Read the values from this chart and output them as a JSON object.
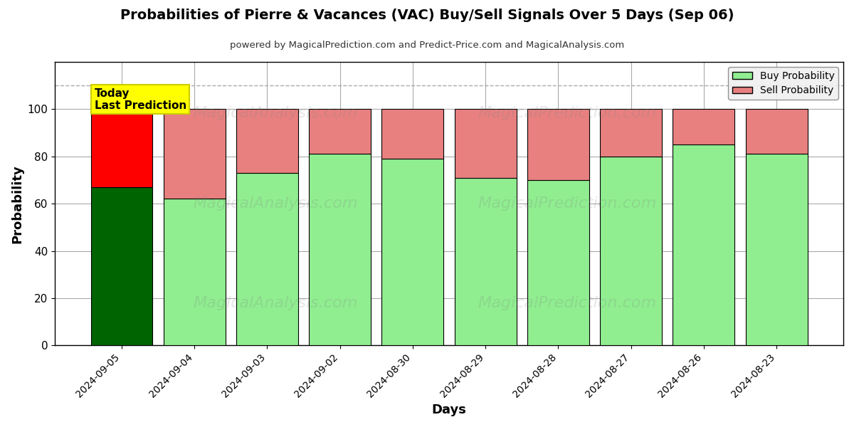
{
  "title": "Probabilities of Pierre & Vacances (VAC) Buy/Sell Signals Over 5 Days (Sep 06)",
  "subtitle": "powered by MagicalPrediction.com and Predict-Price.com and MagicalAnalysis.com",
  "xlabel": "Days",
  "ylabel": "Probability",
  "dates": [
    "2024-09-05",
    "2024-09-04",
    "2024-09-03",
    "2024-09-02",
    "2024-08-30",
    "2024-08-29",
    "2024-08-28",
    "2024-08-27",
    "2024-08-26",
    "2024-08-23"
  ],
  "buy_probs": [
    67,
    62,
    73,
    81,
    79,
    71,
    70,
    80,
    85,
    81
  ],
  "sell_probs": [
    33,
    38,
    27,
    19,
    21,
    29,
    30,
    20,
    15,
    19
  ],
  "buy_color_normal": "#90EE90",
  "sell_color_normal": "#E88080",
  "buy_color_today": "#006400",
  "sell_color_today": "#FF0000",
  "bar_edge_color": "#000000",
  "today_annotation_text": "Today\nLast Prediction",
  "today_annotation_bg": "#FFFF00",
  "today_annotation_edge": "#CCCC00",
  "legend_buy": "Buy Probability",
  "legend_sell": "Sell Probability",
  "ylim": [
    0,
    120
  ],
  "yticks": [
    0,
    20,
    40,
    60,
    80,
    100
  ],
  "dashed_line_y": 110,
  "bar_width": 0.85,
  "figsize": [
    12,
    6
  ],
  "dpi": 100,
  "watermark_texts": [
    "MagicalAnalysis.com",
    "MagicalPrediction.com"
  ],
  "background_color": "#ffffff",
  "grid_color": "#aaaaaa"
}
